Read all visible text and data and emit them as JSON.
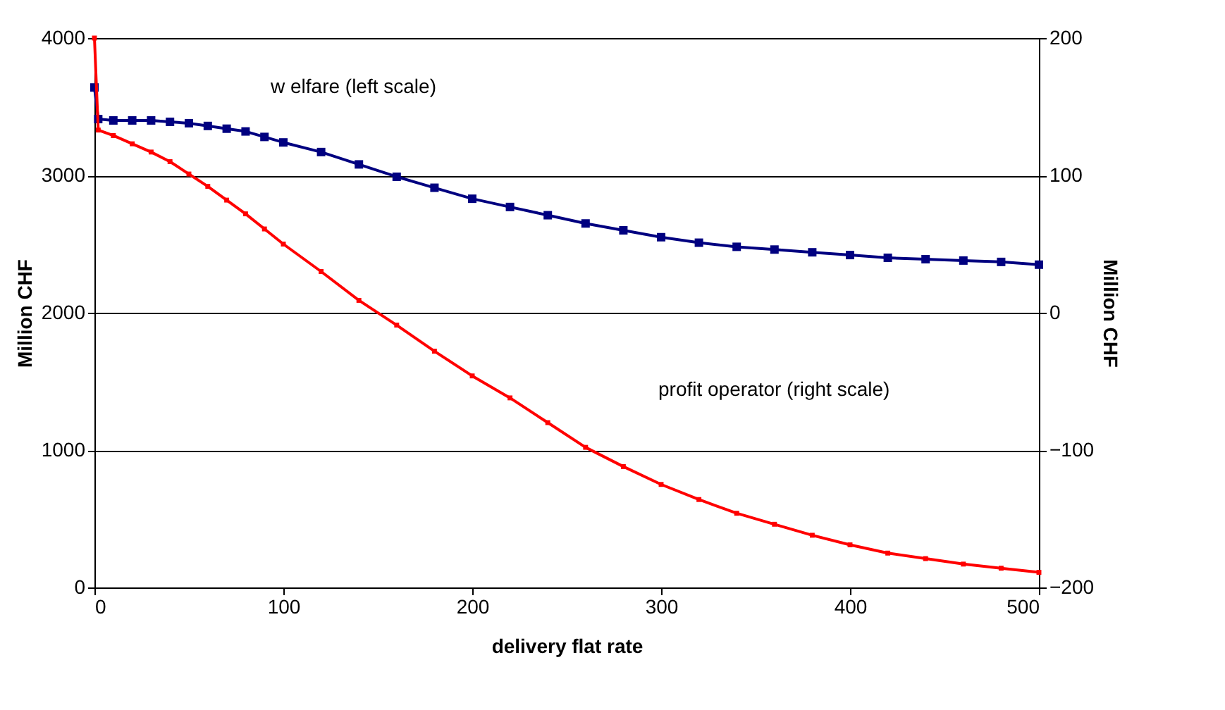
{
  "chart_data": {
    "type": "line",
    "xlabel": "delivery flat rate",
    "ylabel": "Million CHF",
    "y2label": "Million CHF",
    "xlim": [
      0,
      500
    ],
    "xticks": [
      0,
      100,
      200,
      300,
      400,
      500
    ],
    "ylim": [
      0,
      4000
    ],
    "yticks": [
      0,
      1000,
      2000,
      3000,
      4000
    ],
    "y2lim": [
      -200,
      200
    ],
    "y2ticks": [
      -200,
      -100,
      0,
      100,
      200
    ],
    "grid": "y",
    "marker": "square",
    "line_style": "solid",
    "annotations": [
      "w elfare (left scale)",
      "profit operator (right scale)"
    ],
    "series": [
      {
        "color": "#000080",
        "x": [
          0,
          2,
          10,
          20,
          30,
          40,
          50,
          60,
          70,
          80,
          90,
          100,
          120,
          140,
          160,
          180,
          200,
          220,
          240,
          260,
          280,
          300,
          320,
          340,
          360,
          380,
          400,
          420,
          440,
          460,
          480,
          500
        ],
        "values": [
          3640,
          3410,
          3400,
          3400,
          3400,
          3390,
          3380,
          3360,
          3340,
          3320,
          3280,
          3240,
          3170,
          3080,
          2990,
          2910,
          2830,
          2770,
          2710,
          2650,
          2600,
          2550,
          2510,
          2480,
          2460,
          2440,
          2420,
          2400,
          2390,
          2380,
          2370,
          2350
        ]
      },
      {
        "color": "#ff0000",
        "axis": "y2",
        "x": [
          0,
          2,
          10,
          20,
          30,
          40,
          50,
          60,
          70,
          80,
          90,
          100,
          120,
          140,
          160,
          180,
          200,
          220,
          240,
          260,
          280,
          300,
          320,
          340,
          360,
          380,
          400,
          420,
          440,
          460,
          480,
          500
        ],
        "values": [
          200,
          133,
          129,
          123,
          117,
          110,
          101,
          92,
          82,
          72,
          61,
          50,
          30,
          9,
          -9,
          -28,
          -46,
          -62,
          -80,
          -98,
          -112,
          -125,
          -136,
          -146,
          -154,
          -162,
          -169,
          -175,
          -179,
          -183,
          -186,
          -189
        ]
      }
    ]
  }
}
